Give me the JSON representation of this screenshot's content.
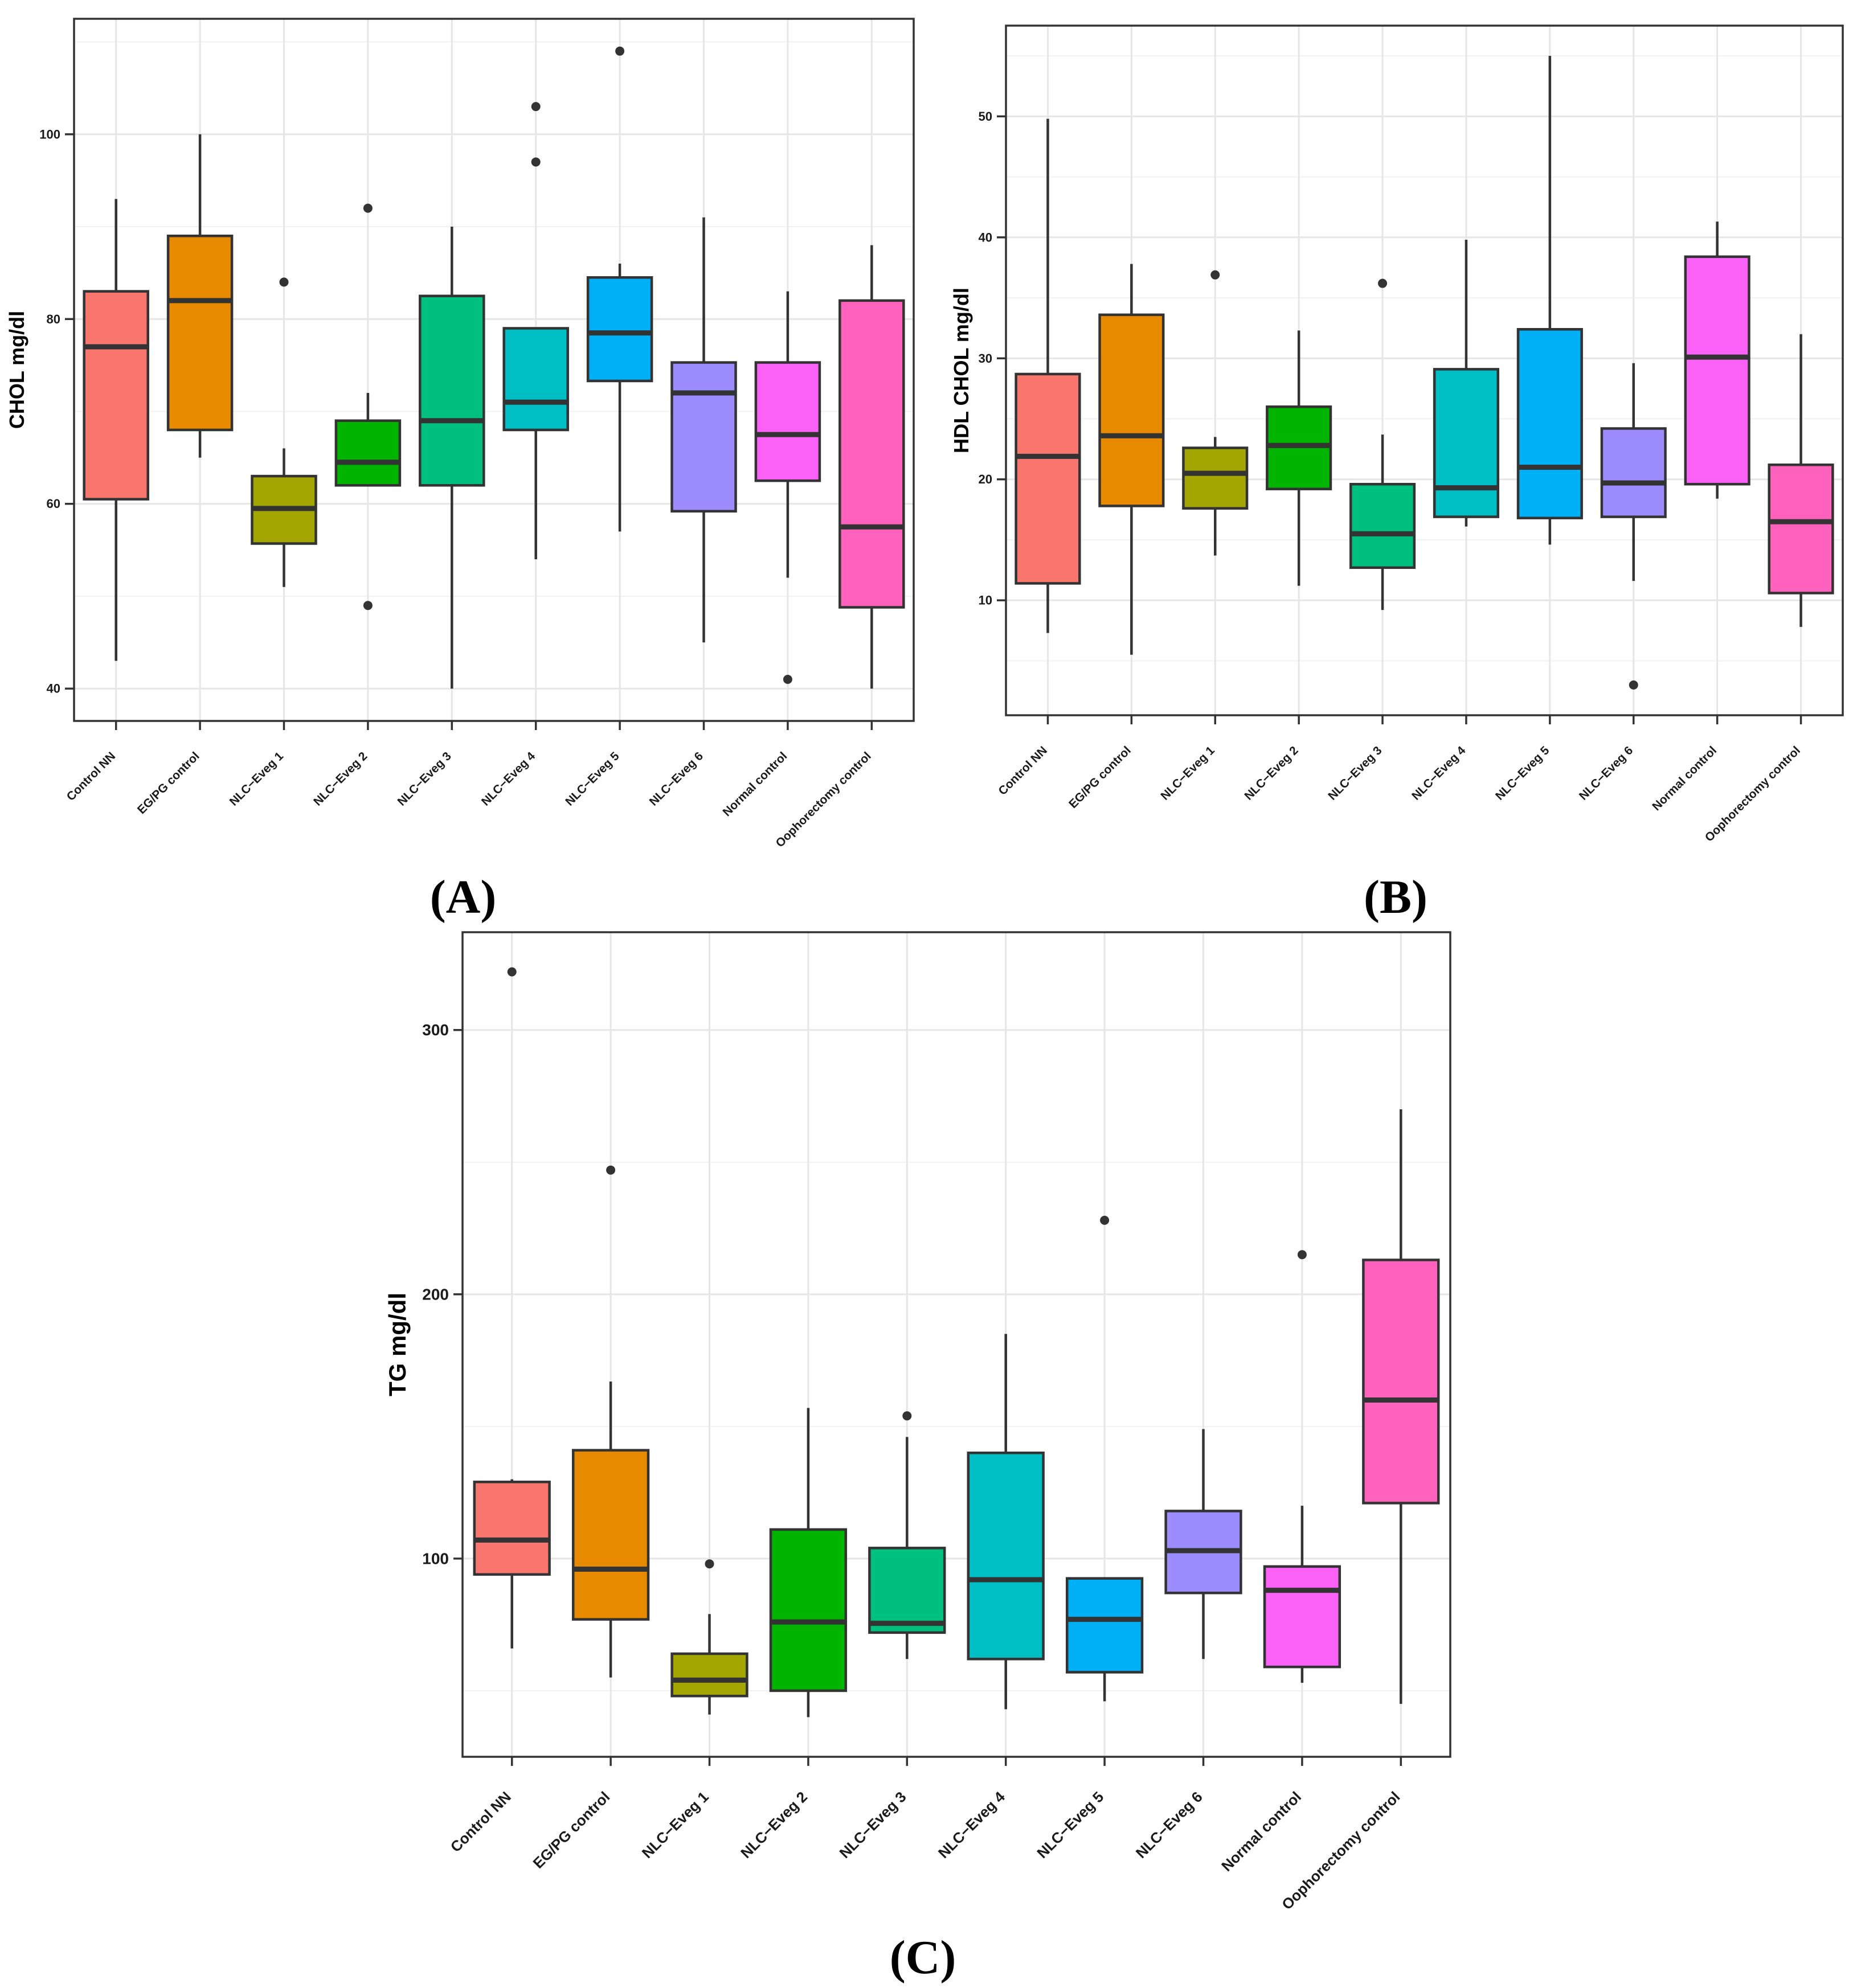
{
  "figure": {
    "colors": [
      "#F8766D",
      "#E88A00",
      "#A3A500",
      "#00B400",
      "#00C080",
      "#00BFC4",
      "#00B0F6",
      "#9D8CFF",
      "#FB61F7",
      "#FF62BC"
    ]
  },
  "chart_data": [
    {
      "type": "boxplot",
      "panel_label": "(A)",
      "title": "",
      "xlabel": "",
      "ylabel": "CHOL mg/dl",
      "ylim": [
        36.5,
        112.5
      ],
      "yticks": [
        40,
        60,
        80,
        100
      ],
      "categories": [
        "Control NN",
        "EG/PG control",
        "NLC−Eveg 1",
        "NLC−Eveg 2",
        "NLC−Eveg 3",
        "NLC−Eveg 4",
        "NLC−Eveg 5",
        "NLC−Eveg 6",
        "Normal control",
        "Oophorectomy control"
      ],
      "boxes": [
        {
          "whisker_low": 43,
          "q1": 60.5,
          "median": 77,
          "q3": 83,
          "whisker_high": 93,
          "outliers": []
        },
        {
          "whisker_low": 65,
          "q1": 68,
          "median": 82,
          "q3": 89,
          "whisker_high": 100,
          "outliers": []
        },
        {
          "whisker_low": 51,
          "q1": 55.7,
          "median": 59.5,
          "q3": 63,
          "whisker_high": 66,
          "outliers": [
            84
          ]
        },
        {
          "whisker_low": 62,
          "q1": 62,
          "median": 64.5,
          "q3": 69,
          "whisker_high": 72,
          "outliers": [
            92,
            49
          ]
        },
        {
          "whisker_low": 40,
          "q1": 62,
          "median": 69,
          "q3": 82.5,
          "whisker_high": 90,
          "outliers": []
        },
        {
          "whisker_low": 54,
          "q1": 68,
          "median": 71,
          "q3": 79,
          "whisker_high": 79,
          "outliers": [
            103,
            97
          ]
        },
        {
          "whisker_low": 57,
          "q1": 73.3,
          "median": 78.5,
          "q3": 84.5,
          "whisker_high": 86,
          "outliers": [
            109
          ]
        },
        {
          "whisker_low": 45,
          "q1": 59.2,
          "median": 72,
          "q3": 75.3,
          "whisker_high": 91,
          "outliers": []
        },
        {
          "whisker_low": 52,
          "q1": 62.5,
          "median": 67.5,
          "q3": 75.3,
          "whisker_high": 83,
          "outliers": [
            41
          ]
        },
        {
          "whisker_low": 40,
          "q1": 48.8,
          "median": 57.5,
          "q3": 82,
          "whisker_high": 88,
          "outliers": []
        }
      ]
    },
    {
      "type": "boxplot",
      "panel_label": "(B)",
      "title": "",
      "xlabel": "",
      "ylabel": "HDL CHOL mg/dl",
      "ylim": [
        0.5,
        57.5
      ],
      "yticks": [
        10,
        20,
        30,
        40,
        50
      ],
      "categories": [
        "Control NN",
        "EG/PG control",
        "NLC−Eveg 1",
        "NLC−Eveg 2",
        "NLC−Eveg 3",
        "NLC−Eveg 4",
        "NLC−Eveg 5",
        "NLC−Eveg 6",
        "Normal control",
        "Oophorectomy control"
      ],
      "boxes": [
        {
          "whisker_low": 7.3,
          "q1": 11.4,
          "median": 21.9,
          "q3": 28.7,
          "whisker_high": 49.8,
          "outliers": []
        },
        {
          "whisker_low": 5.5,
          "q1": 17.8,
          "median": 23.6,
          "q3": 33.6,
          "whisker_high": 37.8,
          "outliers": []
        },
        {
          "whisker_low": 13.7,
          "q1": 17.6,
          "median": 20.5,
          "q3": 22.6,
          "whisker_high": 23.5,
          "outliers": [
            36.9
          ]
        },
        {
          "whisker_low": 11.2,
          "q1": 19.2,
          "median": 22.8,
          "q3": 26.0,
          "whisker_high": 32.3,
          "outliers": []
        },
        {
          "whisker_low": 9.2,
          "q1": 12.7,
          "median": 15.5,
          "q3": 19.6,
          "whisker_high": 23.7,
          "outliers": [
            36.2
          ]
        },
        {
          "whisker_low": 16.1,
          "q1": 16.9,
          "median": 19.3,
          "q3": 29.1,
          "whisker_high": 39.8,
          "outliers": []
        },
        {
          "whisker_low": 14.6,
          "q1": 16.8,
          "median": 21.0,
          "q3": 32.4,
          "whisker_high": 55.0,
          "outliers": []
        },
        {
          "whisker_low": 11.6,
          "q1": 16.9,
          "median": 19.7,
          "q3": 24.2,
          "whisker_high": 29.6,
          "outliers": [
            3.0
          ]
        },
        {
          "whisker_low": 18.4,
          "q1": 19.6,
          "median": 30.1,
          "q3": 38.4,
          "whisker_high": 41.3,
          "outliers": []
        },
        {
          "whisker_low": 7.8,
          "q1": 10.6,
          "median": 16.5,
          "q3": 21.2,
          "whisker_high": 32.0,
          "outliers": []
        }
      ]
    },
    {
      "type": "boxplot",
      "panel_label": "(C)",
      "title": "",
      "xlabel": "",
      "ylabel": "TG mg/dl",
      "ylim": [
        25,
        337
      ],
      "yticks": [
        100,
        200,
        300
      ],
      "categories": [
        "Control NN",
        "EG/PG control",
        "NLC−Eveg 1",
        "NLC−Eveg 2",
        "NLC−Eveg 3",
        "NLC−Eveg 4",
        "NLC−Eveg 5",
        "NLC−Eveg 6",
        "Normal control",
        "Oophorectomy control"
      ],
      "boxes": [
        {
          "whisker_low": 66,
          "q1": 94,
          "median": 107,
          "q3": 129,
          "whisker_high": 130,
          "outliers": [
            322
          ]
        },
        {
          "whisker_low": 55,
          "q1": 77,
          "median": 96,
          "q3": 141,
          "whisker_high": 167,
          "outliers": [
            247
          ]
        },
        {
          "whisker_low": 41,
          "q1": 48,
          "median": 54,
          "q3": 64,
          "whisker_high": 79,
          "outliers": [
            98
          ]
        },
        {
          "whisker_low": 40,
          "q1": 50,
          "median": 76,
          "q3": 111,
          "whisker_high": 157,
          "outliers": []
        },
        {
          "whisker_low": 62,
          "q1": 72,
          "median": 75.5,
          "q3": 104,
          "whisker_high": 146,
          "outliers": [
            154
          ]
        },
        {
          "whisker_low": 43,
          "q1": 62,
          "median": 92,
          "q3": 140,
          "whisker_high": 185,
          "outliers": []
        },
        {
          "whisker_low": 46,
          "q1": 57,
          "median": 77,
          "q3": 92.5,
          "whisker_high": 92.5,
          "outliers": [
            228
          ]
        },
        {
          "whisker_low": 62,
          "q1": 87,
          "median": 103,
          "q3": 118,
          "whisker_high": 149,
          "outliers": []
        },
        {
          "whisker_low": 53,
          "q1": 59,
          "median": 88,
          "q3": 97,
          "whisker_high": 120,
          "outliers": [
            215
          ]
        },
        {
          "whisker_low": 45,
          "q1": 121,
          "median": 160,
          "q3": 213,
          "whisker_high": 270,
          "outliers": []
        }
      ]
    }
  ]
}
